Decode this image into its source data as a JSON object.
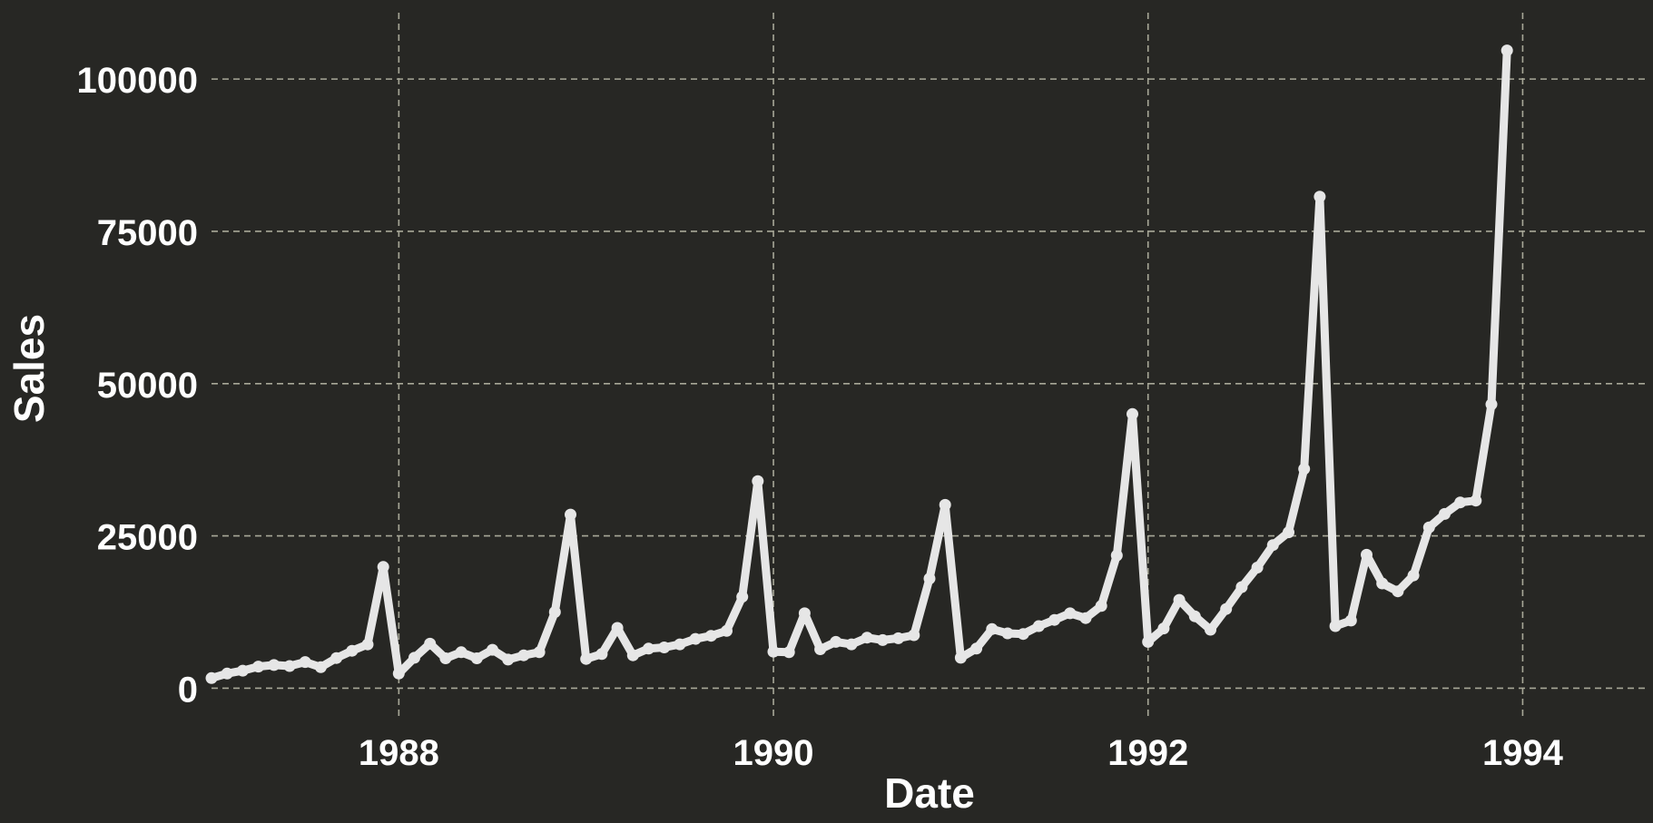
{
  "chart_data": {
    "type": "line",
    "title": "",
    "xlabel": "Date",
    "ylabel": "Sales",
    "x_ticks": [
      "1988",
      "1990",
      "1992",
      "1994"
    ],
    "y_ticks": [
      "0",
      "25000",
      "50000",
      "75000",
      "100000"
    ],
    "xlim": [
      "1987-01",
      "1994-09"
    ],
    "ylim": [
      -5000,
      110000
    ],
    "grid": true,
    "legend": "none",
    "colors": {
      "background": "#272724",
      "grid": "#a8a898",
      "line": "#e6e6e6",
      "text": "#ffffff"
    },
    "series": [
      {
        "x": [
          "1987-01",
          "1987-02",
          "1987-03",
          "1987-04",
          "1987-05",
          "1987-06",
          "1987-07",
          "1987-08",
          "1987-09",
          "1987-10",
          "1987-11",
          "1987-12",
          "1988-01",
          "1988-02",
          "1988-03",
          "1988-04",
          "1988-05",
          "1988-06",
          "1988-07",
          "1988-08",
          "1988-09",
          "1988-10",
          "1988-11",
          "1988-12",
          "1989-01",
          "1989-02",
          "1989-03",
          "1989-04",
          "1989-05",
          "1989-06",
          "1989-07",
          "1989-08",
          "1989-09",
          "1989-10",
          "1989-11",
          "1989-12",
          "1990-01",
          "1990-02",
          "1990-03",
          "1990-04",
          "1990-05",
          "1990-06",
          "1990-07",
          "1990-08",
          "1990-09",
          "1990-10",
          "1990-11",
          "1990-12",
          "1991-01",
          "1991-02",
          "1991-03",
          "1991-04",
          "1991-05",
          "1991-06",
          "1991-07",
          "1991-08",
          "1991-09",
          "1991-10",
          "1991-11",
          "1991-12",
          "1992-01",
          "1992-02",
          "1992-03",
          "1992-04",
          "1992-05",
          "1992-06",
          "1992-07",
          "1992-08",
          "1992-09",
          "1992-10",
          "1992-11",
          "1992-12",
          "1993-01",
          "1993-02",
          "1993-03",
          "1993-04",
          "1993-05",
          "1993-06",
          "1993-07",
          "1993-08",
          "1993-09",
          "1993-10",
          "1993-11",
          "1993-12"
        ],
        "values": [
          1660,
          2400,
          2880,
          3550,
          3800,
          3640,
          4300,
          3440,
          4950,
          6140,
          7180,
          19900,
          2400,
          5000,
          7300,
          4900,
          5900,
          4900,
          6300,
          4700,
          5400,
          5900,
          12500,
          28500,
          4800,
          5600,
          9900,
          5400,
          6500,
          6700,
          7200,
          8100,
          8600,
          9400,
          15000,
          34000,
          6000,
          5900,
          12300,
          6400,
          7600,
          7200,
          8300,
          7900,
          8200,
          8700,
          18000,
          30100,
          5000,
          6500,
          9700,
          9000,
          8900,
          10200,
          11200,
          12300,
          11500,
          13500,
          21800,
          45000,
          7600,
          9800,
          14500,
          11800,
          9600,
          13000,
          16600,
          19800,
          23500,
          25600,
          36000,
          80700,
          10200,
          11100,
          21900,
          17200,
          15900,
          18500,
          26400,
          28600,
          30500,
          30800,
          46600,
          104700
        ]
      }
    ]
  }
}
